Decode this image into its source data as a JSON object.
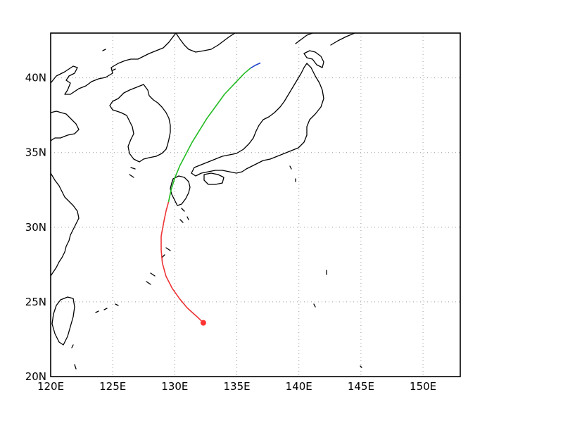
{
  "axes": {
    "lon_range": [
      120,
      153
    ],
    "lat_range": [
      20,
      43
    ],
    "x_ticks": [
      {
        "value": 120,
        "label": "120E"
      },
      {
        "value": 125,
        "label": "125E"
      },
      {
        "value": 130,
        "label": "130E"
      },
      {
        "value": 135,
        "label": "135E"
      },
      {
        "value": 140,
        "label": "140E"
      },
      {
        "value": 145,
        "label": "145E"
      },
      {
        "value": 150,
        "label": "150E"
      }
    ],
    "y_ticks": [
      {
        "value": 20,
        "label": "20N"
      },
      {
        "value": 25,
        "label": "25N"
      },
      {
        "value": 30,
        "label": "30N"
      },
      {
        "value": 35,
        "label": "35N"
      },
      {
        "value": 40,
        "label": "40N"
      }
    ],
    "grid": true
  },
  "chart_data": {
    "type": "line",
    "x_kind": "longitude",
    "y_kind": "latitude",
    "start_marker": {
      "lon": 132.3,
      "lat": 23.6,
      "color": "#ff3333"
    },
    "series": [
      {
        "color": "#ee3333",
        "points": [
          [
            132.3,
            23.6
          ],
          [
            131.8,
            24.0
          ],
          [
            131.0,
            24.6
          ],
          [
            130.4,
            25.2
          ],
          [
            129.8,
            25.9
          ],
          [
            129.3,
            26.7
          ],
          [
            129.0,
            27.6
          ],
          [
            128.9,
            28.5
          ],
          [
            128.9,
            29.4
          ],
          [
            129.1,
            30.3
          ],
          [
            129.3,
            31.1
          ],
          [
            129.5,
            31.7
          ]
        ]
      },
      {
        "color": "#22bb22",
        "points": [
          [
            129.5,
            31.7
          ],
          [
            129.7,
            32.5
          ],
          [
            130.0,
            33.3
          ],
          [
            130.4,
            34.1
          ],
          [
            130.9,
            34.9
          ],
          [
            131.4,
            35.7
          ],
          [
            132.0,
            36.5
          ],
          [
            132.6,
            37.3
          ],
          [
            133.3,
            38.1
          ],
          [
            134.0,
            38.9
          ],
          [
            134.8,
            39.6
          ],
          [
            135.6,
            40.3
          ],
          [
            136.1,
            40.65
          ]
        ]
      },
      {
        "color": "#2244cc",
        "points": [
          [
            136.1,
            40.65
          ],
          [
            136.5,
            40.85
          ],
          [
            136.9,
            41.0
          ]
        ]
      }
    ]
  }
}
